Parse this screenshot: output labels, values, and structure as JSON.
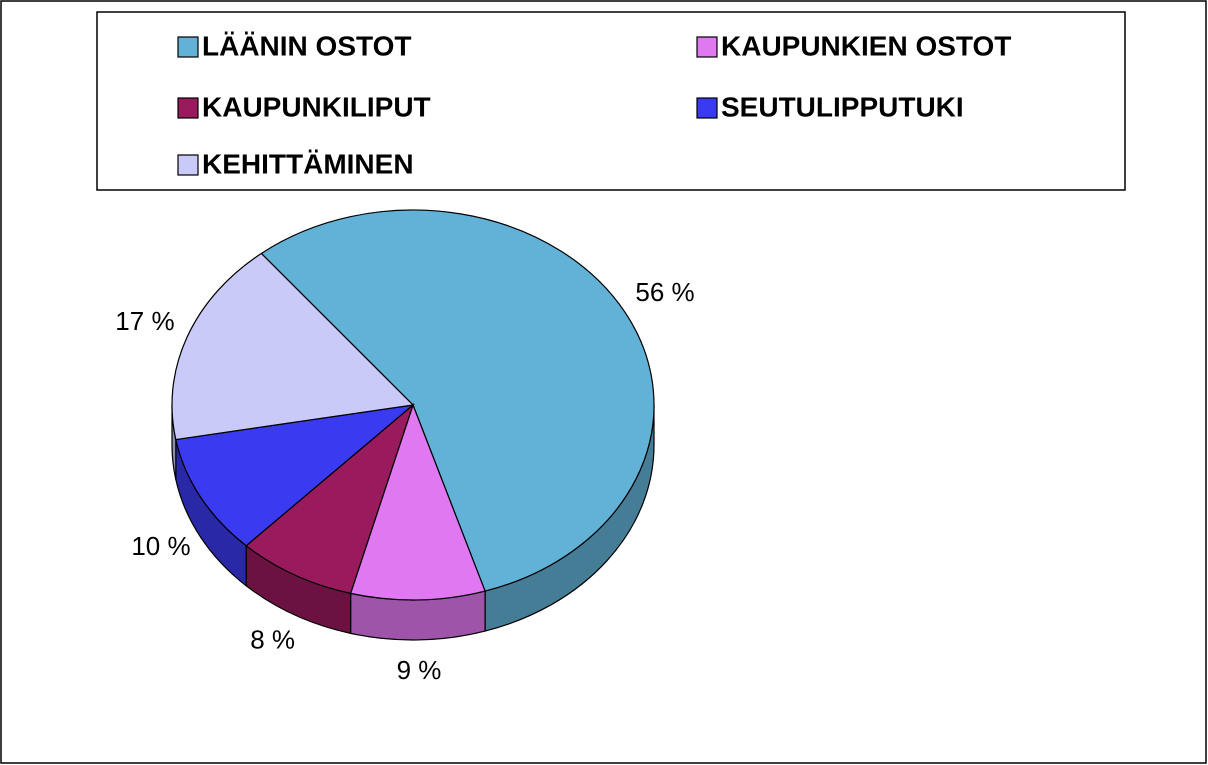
{
  "chart_data": {
    "type": "pie",
    "categories": [
      "LÄÄNIN OSTOT",
      "KAUPUNKIEN OSTOT",
      "KAUPUNKILIPUT",
      "SEUTULIPPUTUKI",
      "KEHITTÄMINEN"
    ],
    "values": [
      56,
      9,
      8,
      10,
      17
    ],
    "value_labels": [
      "56 %",
      "9 %",
      "8 %",
      "10 %",
      "17 %"
    ],
    "colors": [
      "#62b2d8",
      "#e078f2",
      "#9a1a5e",
      "#3a3af0",
      "#cacaf8"
    ]
  }
}
